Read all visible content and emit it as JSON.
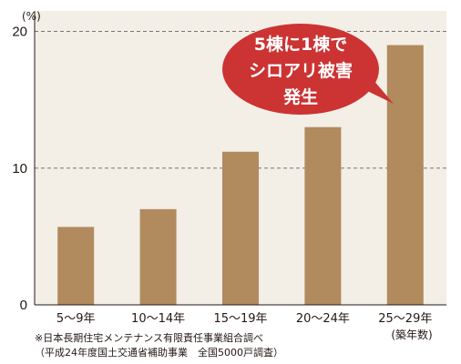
{
  "chart_data": {
    "type": "bar",
    "categories": [
      "5〜9年",
      "10〜14年",
      "15〜19年",
      "20〜24年",
      "25〜29年"
    ],
    "values": [
      5.7,
      7.0,
      11.2,
      13.0,
      19.0
    ],
    "ylim": [
      0,
      21.5
    ],
    "yticks": [
      0,
      10,
      20
    ],
    "ylabel": "(%)",
    "xlabel": "(築年数)",
    "grid": "dashed at 10 and 20",
    "bar_color": "#b18a5e",
    "annotation": {
      "lines": [
        "5棟に1棟で",
        "シロアリ被害",
        "発生"
      ],
      "color": "#cc3333"
    }
  },
  "source": {
    "line1": "※日本長期住宅メンテナンス有限責任事業組合調べ",
    "line2": "（平成24年度国土交通省補助事業　全国5000戸調査）"
  }
}
